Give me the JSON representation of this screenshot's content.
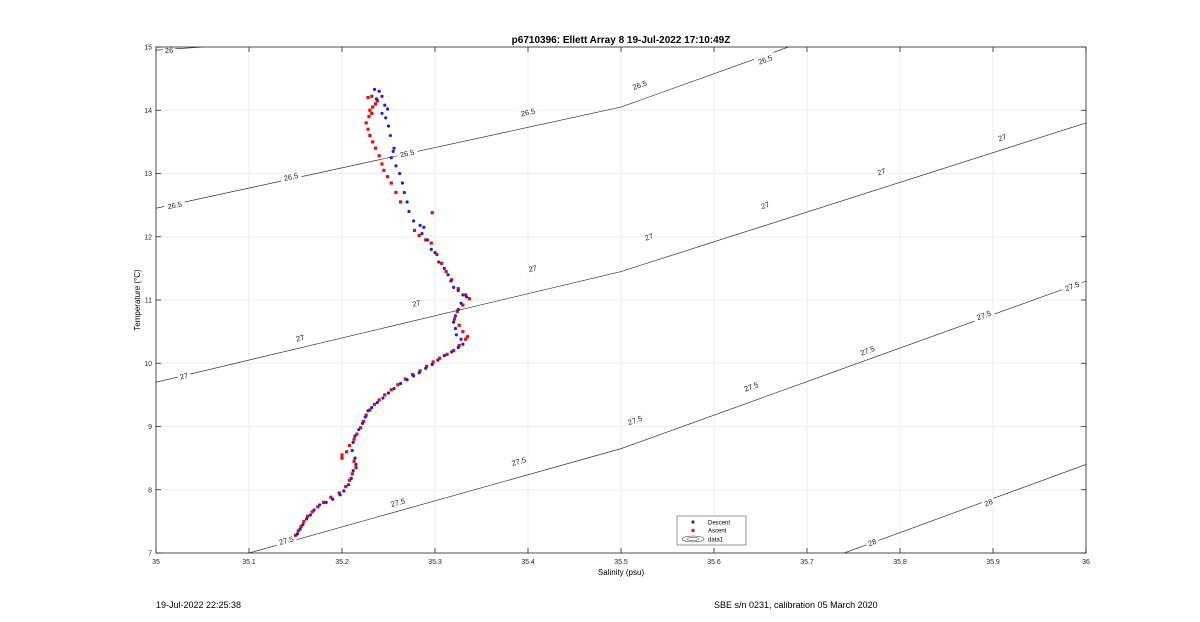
{
  "chart_data": {
    "type": "scatter",
    "title": "p6710396: Ellett Array 8 19-Jul-2022 17:10:49Z",
    "xlabel": "Salinity (psu)",
    "ylabel": "Temperature (°C)",
    "xlim": [
      35,
      36
    ],
    "ylim": [
      7,
      15
    ],
    "xticks": [
      "35",
      "35.1",
      "35.2",
      "35.3",
      "35.4",
      "35.5",
      "35.6",
      "35.7",
      "35.8",
      "35.9",
      "36"
    ],
    "yticks": [
      "7",
      "8",
      "9",
      "10",
      "11",
      "12",
      "13",
      "14",
      "15"
    ],
    "grid": true,
    "legend": {
      "position": "bottom-center",
      "entries": [
        "Descent",
        "Ascent",
        "data1"
      ]
    },
    "colors": {
      "descent": "#1f1fd6",
      "ascent": "#e01010",
      "contour": "#333333",
      "grid": "#e6e6e6"
    },
    "contours": [
      {
        "level": "26",
        "points": [
          [
            35,
            14.95
          ],
          [
            35.05,
            15.0
          ]
        ],
        "labels": [
          [
            35.014,
            14.95
          ]
        ]
      },
      {
        "level": "26.5",
        "points": [
          [
            35,
            12.45
          ],
          [
            35.5,
            14.05
          ],
          [
            35.68,
            15.0
          ]
        ],
        "labels": [
          [
            35.02,
            12.5
          ],
          [
            35.145,
            12.95
          ],
          [
            35.27,
            13.32
          ],
          [
            35.4,
            13.97
          ],
          [
            35.52,
            14.4
          ],
          [
            35.655,
            14.8
          ]
        ]
      },
      {
        "level": "27",
        "points": [
          [
            35,
            9.7
          ],
          [
            35.5,
            11.45
          ],
          [
            36,
            13.8
          ]
        ],
        "labels": [
          [
            35.03,
            9.8
          ],
          [
            35.155,
            10.4
          ],
          [
            35.28,
            10.95
          ],
          [
            35.405,
            11.5
          ],
          [
            35.53,
            12.0
          ],
          [
            35.655,
            12.5
          ],
          [
            35.78,
            13.03
          ],
          [
            35.91,
            13.57
          ]
        ]
      },
      {
        "level": "27.5",
        "points": [
          [
            35.1,
            7.0
          ],
          [
            35.5,
            8.65
          ],
          [
            36,
            11.3
          ]
        ],
        "labels": [
          [
            35.14,
            7.2
          ],
          [
            35.26,
            7.8
          ],
          [
            35.39,
            8.45
          ],
          [
            35.515,
            9.1
          ],
          [
            35.64,
            9.63
          ],
          [
            35.765,
            10.2
          ],
          [
            35.89,
            10.76
          ],
          [
            35.985,
            11.22
          ]
        ]
      },
      {
        "level": "28",
        "points": [
          [
            35.74,
            7.0
          ],
          [
            36,
            8.4
          ]
        ],
        "labels": [
          [
            35.77,
            7.17
          ],
          [
            35.895,
            7.8
          ]
        ]
      }
    ],
    "series": [
      {
        "name": "Descent",
        "points": [
          [
            35.235,
            14.33
          ],
          [
            35.24,
            14.3
          ],
          [
            35.243,
            14.22
          ],
          [
            35.237,
            14.18
          ],
          [
            35.246,
            14.08
          ],
          [
            35.249,
            14.02
          ],
          [
            35.243,
            13.95
          ],
          [
            35.247,
            13.88
          ],
          [
            35.25,
            13.75
          ],
          [
            35.252,
            13.6
          ],
          [
            35.256,
            13.4
          ],
          [
            35.255,
            13.35
          ],
          [
            35.253,
            13.25
          ],
          [
            35.258,
            13.12
          ],
          [
            35.262,
            13.0
          ],
          [
            35.265,
            12.85
          ],
          [
            35.267,
            12.7
          ],
          [
            35.27,
            12.55
          ],
          [
            35.272,
            12.4
          ],
          [
            35.277,
            12.25
          ],
          [
            35.284,
            12.18
          ],
          [
            35.288,
            12.15
          ],
          [
            35.286,
            12.05
          ],
          [
            35.292,
            11.95
          ],
          [
            35.296,
            11.8
          ],
          [
            35.3,
            11.75
          ],
          [
            35.304,
            11.6
          ],
          [
            35.31,
            11.5
          ],
          [
            35.314,
            11.4
          ],
          [
            35.317,
            11.3
          ],
          [
            35.32,
            11.2
          ],
          [
            35.325,
            11.15
          ],
          [
            35.33,
            11.08
          ],
          [
            35.334,
            11.05
          ],
          [
            35.328,
            10.95
          ],
          [
            35.325,
            10.85
          ],
          [
            35.322,
            10.75
          ],
          [
            35.32,
            10.65
          ],
          [
            35.322,
            10.55
          ],
          [
            35.323,
            10.45
          ],
          [
            35.328,
            10.38
          ],
          [
            35.33,
            10.3
          ],
          [
            35.325,
            10.25
          ],
          [
            35.318,
            10.18
          ],
          [
            35.31,
            10.12
          ],
          [
            35.303,
            10.05
          ],
          [
            35.297,
            9.98
          ],
          [
            35.29,
            9.92
          ],
          [
            35.283,
            9.85
          ],
          [
            35.277,
            9.8
          ],
          [
            35.27,
            9.74
          ],
          [
            35.263,
            9.68
          ],
          [
            35.256,
            9.6
          ],
          [
            35.25,
            9.53
          ],
          [
            35.244,
            9.45
          ],
          [
            35.238,
            9.38
          ],
          [
            35.232,
            9.3
          ],
          [
            35.228,
            9.25
          ],
          [
            35.225,
            9.15
          ],
          [
            35.222,
            9.05
          ],
          [
            35.218,
            8.95
          ],
          [
            35.214,
            8.85
          ],
          [
            35.212,
            8.75
          ],
          [
            35.211,
            8.62
          ],
          [
            35.214,
            8.5
          ],
          [
            35.215,
            8.4
          ],
          [
            35.212,
            8.3
          ],
          [
            35.21,
            8.18
          ],
          [
            35.207,
            8.08
          ],
          [
            35.202,
            7.98
          ],
          [
            35.198,
            7.92
          ],
          [
            35.19,
            7.85
          ],
          [
            35.183,
            7.8
          ],
          [
            35.176,
            7.76
          ],
          [
            35.17,
            7.68
          ],
          [
            35.166,
            7.6
          ],
          [
            35.162,
            7.54
          ],
          [
            35.158,
            7.45
          ],
          [
            35.155,
            7.38
          ],
          [
            35.152,
            7.3
          ]
        ]
      },
      {
        "name": "Ascent",
        "points": [
          [
            35.232,
            14.22
          ],
          [
            35.228,
            14.2
          ],
          [
            35.238,
            14.15
          ],
          [
            35.236,
            14.1
          ],
          [
            35.233,
            14.05
          ],
          [
            35.23,
            14.0
          ],
          [
            35.232,
            13.95
          ],
          [
            35.229,
            13.9
          ],
          [
            35.226,
            13.8
          ],
          [
            35.228,
            13.7
          ],
          [
            35.23,
            13.6
          ],
          [
            35.233,
            13.5
          ],
          [
            35.236,
            13.4
          ],
          [
            35.24,
            13.28
          ],
          [
            35.243,
            13.15
          ],
          [
            35.245,
            13.05
          ],
          [
            35.249,
            12.95
          ],
          [
            35.253,
            12.85
          ],
          [
            35.258,
            12.7
          ],
          [
            35.263,
            12.55
          ],
          [
            35.297,
            12.38
          ],
          [
            35.278,
            12.1
          ],
          [
            35.283,
            12.02
          ],
          [
            35.29,
            11.95
          ],
          [
            35.296,
            11.9
          ],
          [
            35.302,
            11.72
          ],
          [
            35.307,
            11.58
          ],
          [
            35.312,
            11.45
          ],
          [
            35.318,
            11.32
          ],
          [
            35.325,
            11.18
          ],
          [
            35.333,
            11.08
          ],
          [
            35.337,
            11.02
          ],
          [
            35.33,
            10.92
          ],
          [
            35.324,
            10.82
          ],
          [
            35.321,
            10.7
          ],
          [
            35.326,
            10.6
          ],
          [
            35.33,
            10.5
          ],
          [
            35.335,
            10.42
          ],
          [
            35.333,
            10.38
          ],
          [
            35.326,
            10.28
          ],
          [
            35.32,
            10.2
          ],
          [
            35.313,
            10.14
          ],
          [
            35.305,
            10.08
          ],
          [
            35.298,
            10.02
          ],
          [
            35.291,
            9.95
          ],
          [
            35.284,
            9.88
          ],
          [
            35.276,
            9.82
          ],
          [
            35.268,
            9.75
          ],
          [
            35.26,
            9.66
          ],
          [
            35.253,
            9.58
          ],
          [
            35.246,
            9.5
          ],
          [
            35.24,
            9.42
          ],
          [
            35.235,
            9.35
          ],
          [
            35.23,
            9.26
          ],
          [
            35.226,
            9.18
          ],
          [
            35.223,
            9.08
          ],
          [
            35.22,
            8.98
          ],
          [
            35.216,
            8.88
          ],
          [
            35.213,
            8.8
          ],
          [
            35.208,
            8.7
          ],
          [
            35.205,
            8.6
          ],
          [
            35.2,
            8.55
          ],
          [
            35.2,
            8.5
          ],
          [
            35.213,
            8.45
          ],
          [
            35.215,
            8.35
          ],
          [
            35.211,
            8.25
          ],
          [
            35.208,
            8.15
          ],
          [
            35.204,
            8.05
          ],
          [
            35.197,
            7.95
          ],
          [
            35.188,
            7.88
          ],
          [
            35.18,
            7.8
          ],
          [
            35.174,
            7.73
          ],
          [
            35.168,
            7.65
          ],
          [
            35.163,
            7.58
          ],
          [
            35.159,
            7.5
          ],
          [
            35.156,
            7.42
          ],
          [
            35.153,
            7.35
          ],
          [
            35.15,
            7.28
          ]
        ]
      }
    ]
  },
  "footer": {
    "left": "19-Jul-2022 22:25:38",
    "right": "SBE s/n 0231, calibration 05 March 2020"
  }
}
